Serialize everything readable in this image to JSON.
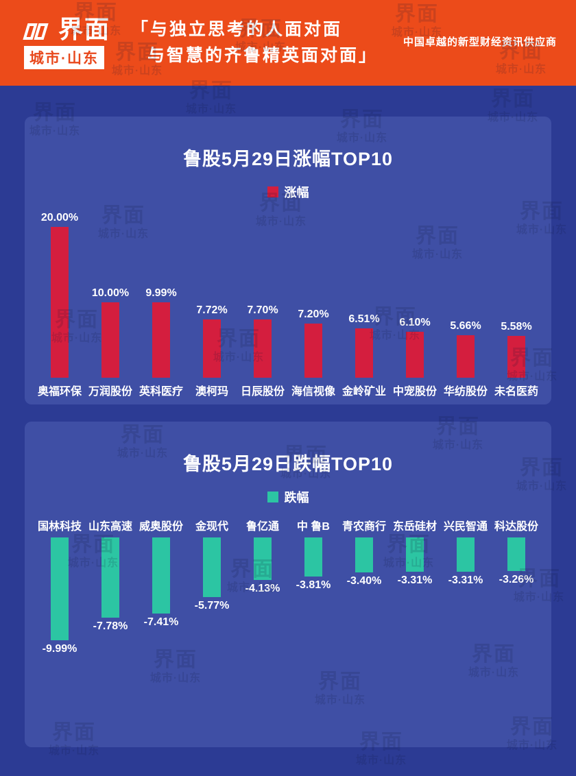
{
  "page": {
    "bg_color": "#2c3b94",
    "panel_color": "#3f4fa5"
  },
  "header": {
    "bg_color": "#ec4b1a",
    "logo_title": "界面",
    "logo_badge": "城市·山东",
    "quote_line1": "「与独立思考的人面对面",
    "quote_line2": "与智慧的齐鲁精英面对面」",
    "tagline": "中国卓越的新型财经资讯供应商"
  },
  "watermark": {
    "line1": "界面",
    "line2": "城市·山东"
  },
  "chart_data": [
    {
      "type": "bar",
      "title": "鲁股5月29日涨幅TOP10",
      "legend": "涨幅",
      "legend_position": "top",
      "bar_color": "#d41e3e",
      "direction": "up",
      "grid": false,
      "ylim": [
        0,
        20
      ],
      "categories": [
        "奥福环保",
        "万润股份",
        "英科医疗",
        "澳柯玛",
        "日辰股份",
        "海信视像",
        "金岭矿业",
        "中宠股份",
        "华纺股份",
        "未名医药"
      ],
      "values": [
        20.0,
        10.0,
        9.99,
        7.72,
        7.7,
        7.2,
        6.51,
        6.1,
        5.66,
        5.58
      ],
      "value_labels": [
        "20.00%",
        "10.00%",
        "9.99%",
        "7.72%",
        "7.70%",
        "7.20%",
        "6.51%",
        "6.10%",
        "5.66%",
        "5.58%"
      ]
    },
    {
      "type": "bar",
      "title": "鲁股5月29日跌幅TOP10",
      "legend": "跌幅",
      "legend_position": "top",
      "bar_color": "#2cc5a3",
      "direction": "down",
      "grid": false,
      "ylim": [
        -10,
        0
      ],
      "categories": [
        "国林科技",
        "山东高速",
        "威奥股份",
        "金现代",
        "鲁亿通",
        "中 鲁B",
        "青农商行",
        "东岳硅材",
        "兴民智通",
        "科达股份"
      ],
      "values": [
        -9.99,
        -7.78,
        -7.41,
        -5.77,
        -4.13,
        -3.81,
        -3.4,
        -3.31,
        -3.31,
        -3.26
      ],
      "value_labels": [
        "-9.99%",
        "-7.78%",
        "-7.41%",
        "-5.77%",
        "-4.13%",
        "-3.81%",
        "-3.40%",
        "-3.31%",
        "-3.31%",
        "-3.26%"
      ]
    }
  ]
}
